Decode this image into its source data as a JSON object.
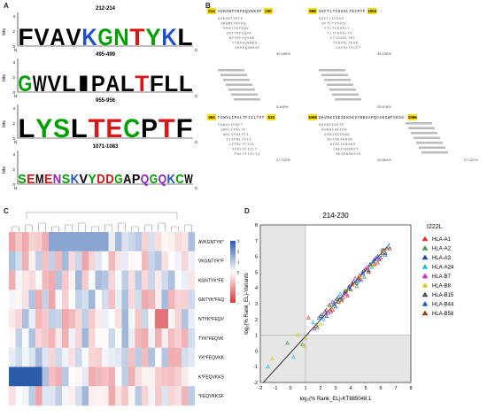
{
  "panels": {
    "A": {
      "label": "A",
      "logos": [
        {
          "title": "212-214",
          "sequence": "FVAVKGNTYKL",
          "colors": [
            "#000",
            "#000",
            "#000",
            "#000",
            "#2050c8",
            "#00a000",
            "#00a000",
            "#d81818",
            "#00a000",
            "#2050c8",
            "#000"
          ]
        },
        {
          "title": "495-499",
          "sequence": "GWVLIPALTFLL",
          "colors": [
            "#00a000",
            "#000",
            "#000",
            "#000",
            "#000",
            "#000",
            "#000",
            "#000",
            "#d81818",
            "#000",
            "#000",
            "#000"
          ]
        },
        {
          "title": "955-956",
          "sequence": "LYSLTECPTF",
          "colors": [
            "#000",
            "#00a000",
            "#00a000",
            "#000",
            "#d81818",
            "#d81818",
            "#00a000",
            "#000",
            "#d81818",
            "#000"
          ]
        },
        {
          "title": "1071-1083",
          "sequence": "SEMENSKVYDDGAPQGQKCW",
          "colors": [
            "#00a000",
            "#d81818",
            "#000",
            "#d81818",
            "#9020c0",
            "#00a000",
            "#2050c8",
            "#000",
            "#00a000",
            "#d81818",
            "#d81818",
            "#00a000",
            "#000",
            "#000",
            "#9020c0",
            "#00a000",
            "#9020c0",
            "#2050c8",
            "#00a000",
            "#000"
          ]
        }
      ],
      "y_axis": "bits",
      "n_label": "N",
      "c_label": "C",
      "tick_labels": [
        "0",
        "2",
        "4"
      ]
    },
    "B": {
      "label": "B",
      "blocks": [
        {
          "start": "214",
          "seq": "AVKGNTYKFEQVKKSF",
          "end": "230",
          "percent": "39.189%"
        },
        {
          "start": "988",
          "seq": "VGFTLTCGVSLTECPTF",
          "end": "1004",
          "percent": "35.135%"
        },
        {
          "start": "",
          "seq": "",
          "end": "",
          "percent": "5.405%"
        },
        {
          "start": "",
          "seq": "",
          "end": "",
          "percent": "25.676%"
        },
        {
          "start": "494",
          "seq": "FGWVLIPALTFIILTVT",
          "end": "510",
          "percent": "27.702%"
        },
        {
          "start": "1065",
          "seq": "DKVNGISEIENSKVYDDGAPQCGKCWFVKSG",
          "end": "1096",
          "percent": "20.864%"
        },
        {
          "start": "",
          "seq": "",
          "end": "",
          "percent": "27.027%"
        }
      ]
    },
    "C": {
      "label": "C",
      "rows": [
        "AVKGNTYK*",
        "VKGNTYK*F",
        "KGNTYK*FE",
        "GNTYK*FEQ",
        "NTYK*FEQV",
        "TYK*FEQVK",
        "YK*FEQVKK",
        "K*FEQVKKS",
        "*FEQVKKSF"
      ],
      "colorbar_ticks": [
        "3",
        "2",
        "1",
        "0",
        "-1",
        "-2",
        "-3"
      ],
      "low_color": "#d9363e",
      "high_color": "#2a5caa",
      "n_cols": 28
    },
    "D": {
      "label": "D",
      "title": "214-230",
      "legend_title": "I222L",
      "xlabel": "log2(% Rank_EL)-KT885048.1",
      "ylabel": "log2(% Rank_EL)-Variants"
    }
  },
  "chart_data": {
    "type": "scatter",
    "title": "214-230",
    "xlabel": "log₂(% Rank_EL)-KT885048.1",
    "ylabel": "log₂(% Rank_EL)-Variants",
    "xlim": [
      -2,
      8
    ],
    "ylim": [
      -2,
      8
    ],
    "x_ticks": [
      -2,
      -1,
      0,
      1,
      2,
      3,
      4,
      5,
      6,
      7,
      8
    ],
    "y_ticks": [
      -2,
      -1,
      0,
      1,
      2,
      3,
      4,
      5,
      6,
      7,
      8
    ],
    "legend_title": "I222L",
    "legend_position": "right",
    "series": [
      {
        "name": "HLA-A1",
        "color": "#e83030",
        "points": [
          [
            2.4,
            2.6
          ],
          [
            3.2,
            3.1
          ],
          [
            4.1,
            4.3
          ],
          [
            5.0,
            5.2
          ],
          [
            5.8,
            5.6
          ],
          [
            6.2,
            6.4
          ],
          [
            3.8,
            3.5
          ],
          [
            4.6,
            4.8
          ],
          [
            1.2,
            2.1
          ],
          [
            2.8,
            2.6
          ]
        ]
      },
      {
        "name": "HLA-A2",
        "color": "#40a040",
        "points": [
          [
            1.8,
            1.5
          ],
          [
            2.6,
            2.9
          ],
          [
            3.4,
            3.3
          ],
          [
            4.4,
            4.1
          ],
          [
            5.3,
            5.5
          ],
          [
            6.0,
            6.1
          ],
          [
            0.8,
            0.4
          ],
          [
            3.0,
            3.2
          ],
          [
            4.9,
            4.7
          ],
          [
            -0.2,
            0.5
          ]
        ]
      },
      {
        "name": "HLA-A3",
        "color": "#2040c0",
        "points": [
          [
            2.0,
            2.2
          ],
          [
            3.0,
            2.8
          ],
          [
            3.9,
            4.0
          ],
          [
            4.8,
            5.0
          ],
          [
            5.6,
            5.8
          ],
          [
            6.3,
            6.2
          ],
          [
            2.3,
            2.5
          ],
          [
            4.2,
            4.4
          ],
          [
            5.2,
            5.1
          ],
          [
            6.1,
            6.4
          ]
        ]
      },
      {
        "name": "HLA-A24",
        "color": "#20c0e0",
        "points": [
          [
            1.5,
            1.8
          ],
          [
            2.2,
            2.0
          ],
          [
            3.6,
            3.8
          ],
          [
            4.5,
            4.4
          ],
          [
            5.4,
            5.3
          ],
          [
            -1.5,
            -1.0
          ],
          [
            0.2,
            -0.4
          ],
          [
            6.5,
            6.6
          ],
          [
            2.9,
            3.0
          ],
          [
            3.3,
            3.6
          ]
        ]
      },
      {
        "name": "HLA-B7",
        "color": "#d020d0",
        "points": [
          [
            1.6,
            1.4
          ],
          [
            2.5,
            2.4
          ],
          [
            3.5,
            3.4
          ],
          [
            4.3,
            4.6
          ],
          [
            5.1,
            5.3
          ],
          [
            6.0,
            5.9
          ],
          [
            2.8,
            3.1
          ],
          [
            3.7,
            3.6
          ],
          [
            4.7,
            4.5
          ],
          [
            5.7,
            5.9
          ]
        ]
      },
      {
        "name": "HLA-B8",
        "color": "#d0d020",
        "points": [
          [
            0.5,
            1.0
          ],
          [
            1.0,
            0.8
          ],
          [
            2.7,
            2.8
          ],
          [
            3.8,
            3.9
          ],
          [
            4.6,
            4.7
          ],
          [
            5.5,
            5.4
          ],
          [
            6.2,
            6.3
          ],
          [
            -1.2,
            -0.5
          ],
          [
            0.9,
            0.3
          ],
          [
            2.0,
            1.7
          ]
        ]
      },
      {
        "name": "HLA-B15",
        "color": "#505050",
        "points": [
          [
            2.1,
            2.3
          ],
          [
            3.1,
            3.3
          ],
          [
            4.0,
            3.9
          ],
          [
            4.9,
            5.1
          ],
          [
            5.9,
            5.8
          ],
          [
            6.4,
            6.5
          ],
          [
            3.6,
            3.7
          ],
          [
            4.4,
            4.3
          ],
          [
            5.3,
            5.5
          ],
          [
            2.6,
            2.9
          ]
        ]
      },
      {
        "name": "HLA-B44",
        "color": "#2060d0",
        "points": [
          [
            1.9,
            2.1
          ],
          [
            2.9,
            3.0
          ],
          [
            3.9,
            4.1
          ],
          [
            4.6,
            4.5
          ],
          [
            5.5,
            5.7
          ],
          [
            6.3,
            6.1
          ],
          [
            3.2,
            3.4
          ],
          [
            4.8,
            4.9
          ],
          [
            5.8,
            6.0
          ],
          [
            2.4,
            2.2
          ]
        ]
      },
      {
        "name": "HLA-B58",
        "color": "#904010",
        "points": [
          [
            1.7,
            1.6
          ],
          [
            2.7,
            2.5
          ],
          [
            3.7,
            3.8
          ],
          [
            4.5,
            4.6
          ],
          [
            5.2,
            5.0
          ],
          [
            6.1,
            6.2
          ],
          [
            3.4,
            3.2
          ],
          [
            4.1,
            4.2
          ],
          [
            5.6,
            5.5
          ],
          [
            6.6,
            6.5
          ]
        ]
      }
    ]
  }
}
